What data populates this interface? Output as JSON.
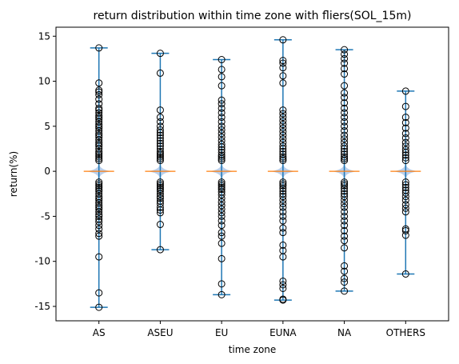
{
  "chart_data": {
    "type": "boxplot",
    "title": "return distribution within time zone with fliers(SOL_15m)",
    "xlabel": "time zone",
    "ylabel": "return(%)",
    "ylim": [
      -16.6,
      16.0
    ],
    "yticks": [
      -15,
      -10,
      -5,
      0,
      5,
      10,
      15
    ],
    "grid": false,
    "categories": [
      "AS",
      "ASEU",
      "EU",
      "EUNA",
      "NA",
      "OTHERS"
    ],
    "whiskers": [
      {
        "min": -15.1,
        "max": 13.7
      },
      {
        "min": -8.7,
        "max": 13.1
      },
      {
        "min": -13.7,
        "max": 12.4
      },
      {
        "min": -14.3,
        "max": 14.6
      },
      {
        "min": -13.3,
        "max": 13.5
      },
      {
        "min": -11.4,
        "max": 8.9
      }
    ],
    "medians": [
      0,
      0,
      0,
      0,
      0,
      0
    ],
    "fliers": [
      [
        13.7,
        9.8,
        9.0,
        8.8,
        8.5,
        8.0,
        7.5,
        7.0,
        6.8,
        6.5,
        6.2,
        6.0,
        5.8,
        5.5,
        5.2,
        5.0,
        4.8,
        4.5,
        4.2,
        4.0,
        3.8,
        3.5,
        3.2,
        3.0,
        2.8,
        2.5,
        2.2,
        2.0,
        1.8,
        1.6,
        1.4,
        1.2,
        -1.2,
        -1.4,
        -1.6,
        -1.8,
        -2.0,
        -2.2,
        -2.5,
        -2.8,
        -3.0,
        -3.2,
        -3.5,
        -3.8,
        -4.0,
        -4.2,
        -4.5,
        -4.8,
        -5.0,
        -5.3,
        -5.6,
        -6.0,
        -6.4,
        -6.9,
        -7.2,
        -9.5,
        -13.5,
        -15.1
      ],
      [
        13.1,
        10.9,
        6.8,
        6.0,
        5.5,
        5.0,
        4.6,
        4.3,
        4.0,
        3.7,
        3.4,
        3.1,
        2.8,
        2.5,
        2.2,
        2.0,
        1.8,
        1.6,
        1.4,
        1.2,
        -1.2,
        -1.4,
        -1.6,
        -1.8,
        -2.0,
        -2.2,
        -2.5,
        -2.8,
        -3.0,
        -3.3,
        -3.6,
        -4.0,
        -4.3,
        -4.6,
        -5.9,
        -8.7
      ],
      [
        12.4,
        11.3,
        10.5,
        9.5,
        7.9,
        7.5,
        7.0,
        6.5,
        6.0,
        5.5,
        5.0,
        4.6,
        4.2,
        3.8,
        3.4,
        3.0,
        2.7,
        2.4,
        2.1,
        1.8,
        1.6,
        1.4,
        1.2,
        -1.2,
        -1.4,
        -1.6,
        -1.8,
        -2.0,
        -2.3,
        -2.6,
        -3.0,
        -3.4,
        -3.8,
        -4.2,
        -4.6,
        -5.0,
        -5.5,
        -6.0,
        -6.8,
        -7.2,
        -8.0,
        -9.7,
        -12.5,
        -13.7
      ],
      [
        14.6,
        12.3,
        12.0,
        11.5,
        10.6,
        9.8,
        6.8,
        6.4,
        6.0,
        5.6,
        5.2,
        4.8,
        4.4,
        4.0,
        3.6,
        3.2,
        2.8,
        2.5,
        2.2,
        1.9,
        1.6,
        1.4,
        1.2,
        -1.2,
        -1.4,
        -1.6,
        -1.9,
        -2.2,
        -2.5,
        -2.8,
        -3.2,
        -3.6,
        -4.0,
        -4.5,
        -5.0,
        -5.5,
        -6.3,
        -6.8,
        -8.2,
        -8.8,
        -9.5,
        -12.2,
        -12.6,
        -13.0,
        -14.2,
        -14.3
      ],
      [
        13.5,
        13.0,
        12.5,
        12.0,
        11.4,
        10.8,
        9.5,
        8.7,
        8.2,
        7.6,
        7.0,
        6.5,
        6.0,
        5.5,
        5.0,
        4.5,
        4.0,
        3.6,
        3.2,
        2.8,
        2.5,
        2.2,
        1.9,
        1.6,
        1.4,
        1.2,
        -1.2,
        -1.4,
        -1.6,
        -1.9,
        -2.2,
        -2.5,
        -2.8,
        -3.2,
        -3.6,
        -4.0,
        -4.5,
        -5.0,
        -5.5,
        -6.0,
        -6.6,
        -7.2,
        -7.7,
        -8.5,
        -10.5,
        -11.1,
        -11.9,
        -12.3,
        -13.3
      ],
      [
        8.9,
        7.2,
        6.0,
        5.4,
        4.8,
        4.2,
        3.7,
        3.2,
        2.8,
        2.4,
        2.1,
        1.8,
        1.5,
        1.2,
        -1.2,
        -1.5,
        -1.8,
        -2.1,
        -2.4,
        -2.8,
        -3.2,
        -3.7,
        -4.1,
        -4.5,
        -6.4,
        -6.6,
        -7.1,
        -11.4
      ]
    ]
  }
}
